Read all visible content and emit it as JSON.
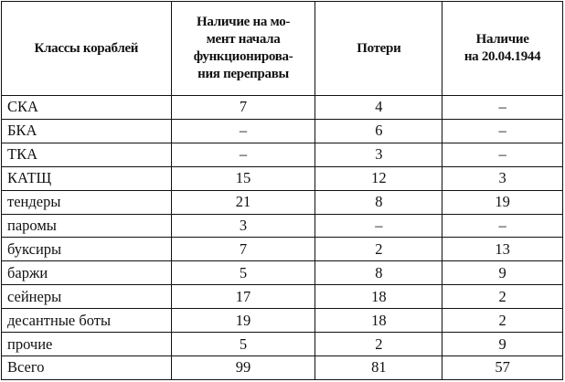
{
  "table": {
    "headers": [
      "Классы кораблей",
      "Наличие на мо-\nмент начала\nфункционирова-\nния переправы",
      "Потери",
      "Наличие\nна 20.04.1944"
    ],
    "rows": [
      [
        "СКА",
        "7",
        "4",
        "–"
      ],
      [
        "БКА",
        "–",
        "6",
        "–"
      ],
      [
        "ТКА",
        "–",
        "3",
        "–"
      ],
      [
        "КАТЩ",
        "15",
        "12",
        "3"
      ],
      [
        "тендеры",
        "21",
        "8",
        "19"
      ],
      [
        "паромы",
        "3",
        "–",
        "–"
      ],
      [
        "буксиры",
        "7",
        "2",
        "13"
      ],
      [
        "баржи",
        "5",
        "8",
        "9"
      ],
      [
        "сейнеры",
        "17",
        "18",
        "2"
      ],
      [
        "десантные боты",
        "19",
        "18",
        "2"
      ],
      [
        "прочие",
        "5",
        "2",
        "9"
      ],
      [
        "Всего",
        "99",
        "81",
        "57"
      ]
    ]
  }
}
